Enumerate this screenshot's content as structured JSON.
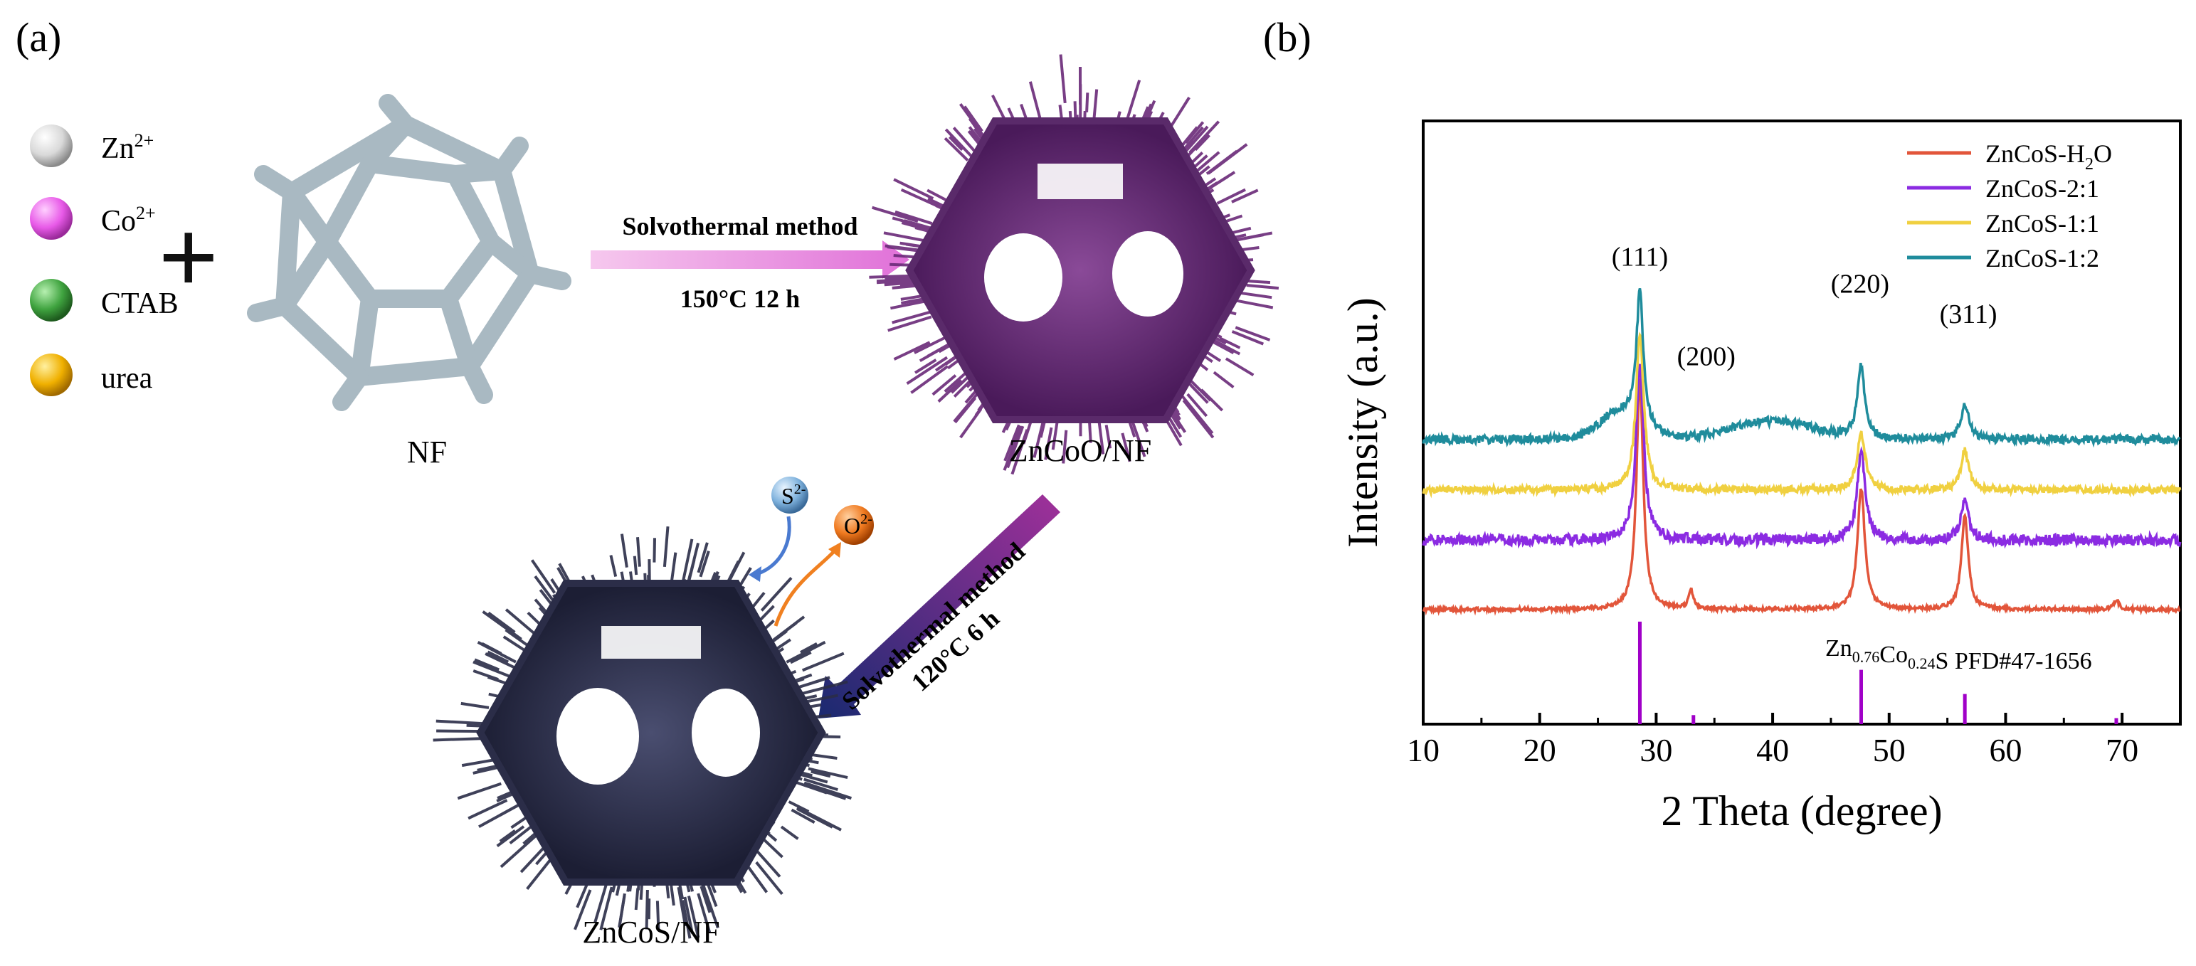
{
  "panel_a": {
    "label": "(a)",
    "legend": [
      {
        "name": "zn-ion",
        "base": "Zn",
        "sup": "2+",
        "color": "#f2f2f2"
      },
      {
        "name": "co-ion",
        "base": "Co",
        "sup": "2+",
        "color": "#e85ae8"
      },
      {
        "name": "ctab",
        "base": "CTAB",
        "sup": "",
        "color": "#3fa33f"
      },
      {
        "name": "urea",
        "base": "urea",
        "sup": "",
        "color": "#f0b000"
      }
    ],
    "plus": "+",
    "nf_label": "NF",
    "step1": {
      "method": "Solvothermal method",
      "condition": "150°C 12 h"
    },
    "zncoo_label": "ZnCoO/NF",
    "step2": {
      "method": "Solvothermal method",
      "condition": "120°C  6 h"
    },
    "sulfide_ion": {
      "base": "S",
      "sup": "2-"
    },
    "oxide_ion": {
      "base": "O",
      "sup": "2-"
    },
    "zncos_label": "ZnCoS/NF",
    "colors": {
      "frame": "#a9b9c2",
      "zncoo": "#6a2a78",
      "zncos": "#2b2d48"
    }
  },
  "panel_b": {
    "label": "(b)"
  },
  "chart_data": {
    "type": "line",
    "xlabel": "2 Theta (degree)",
    "ylabel": "Intensity (a.u.)",
    "xlim": [
      10,
      75
    ],
    "ylim": [
      0,
      10
    ],
    "xticks": [
      "10",
      "20",
      "30",
      "40",
      "50",
      "60",
      "70"
    ],
    "grid": false,
    "legend_position": "top-right",
    "series": [
      {
        "name": "ZnCoS-H2O",
        "label_base": "ZnCoS-H",
        "label_sub": "2",
        "label_tail": "O",
        "color": "#e2553a",
        "baseline": 1.9,
        "noise": 0.03,
        "peaks": [
          [
            28.6,
            3.8,
            0.35
          ],
          [
            33.0,
            0.3,
            0.25
          ],
          [
            47.6,
            2.0,
            0.38
          ],
          [
            56.5,
            1.55,
            0.35
          ],
          [
            69.5,
            0.15,
            0.3
          ]
        ]
      },
      {
        "name": "ZnCoS-2:1",
        "label_base": "ZnCoS-2:1",
        "label_sub": "",
        "label_tail": "",
        "color": "#8b2be2",
        "baseline": 3.05,
        "noise": 0.09,
        "peaks": [
          [
            28.6,
            2.9,
            0.4
          ],
          [
            47.6,
            1.5,
            0.4
          ],
          [
            56.5,
            0.65,
            0.4
          ]
        ]
      },
      {
        "name": "ZnCoS-1:1",
        "label_base": "ZnCoS-1:1",
        "label_sub": "",
        "label_tail": "",
        "color": "#f0d040",
        "baseline": 3.88,
        "noise": 0.06,
        "peaks": [
          [
            28.6,
            2.6,
            0.4
          ],
          [
            47.6,
            0.95,
            0.42
          ],
          [
            56.5,
            0.65,
            0.4
          ]
        ]
      },
      {
        "name": "ZnCoS-1:2",
        "label_base": "ZnCoS-1:2",
        "label_sub": "",
        "label_tail": "",
        "color": "#1f8c9c",
        "baseline": 4.72,
        "noise": 0.07,
        "hump": [
          [
            27.0,
            0.45,
            2.5
          ],
          [
            40.0,
            0.3,
            5.0
          ]
        ],
        "peaks": [
          [
            28.6,
            2.15,
            0.35
          ],
          [
            47.6,
            1.2,
            0.38
          ],
          [
            56.5,
            0.6,
            0.4
          ]
        ]
      }
    ],
    "annotations": [
      {
        "text": "(111)",
        "x": 28.6,
        "y": 7.6
      },
      {
        "text": "(200)",
        "x": 34.3,
        "y": 5.95
      },
      {
        "text": "(220)",
        "x": 47.5,
        "y": 7.15
      },
      {
        "text": "(311)",
        "x": 56.8,
        "y": 6.65
      }
    ],
    "reference": {
      "label_parts": [
        {
          "t": "Zn",
          "s": ""
        },
        {
          "t": "0.76",
          "s": "sub"
        },
        {
          "t": "Co",
          "s": ""
        },
        {
          "t": "0.24",
          "s": "sub"
        },
        {
          "t": "S PFD#47-1656",
          "s": ""
        }
      ],
      "color": "#a000c8",
      "sticks": [
        [
          28.6,
          1.7
        ],
        [
          33.2,
          0.15
        ],
        [
          47.6,
          0.9
        ],
        [
          56.5,
          0.5
        ],
        [
          69.5,
          0.1
        ]
      ]
    }
  }
}
